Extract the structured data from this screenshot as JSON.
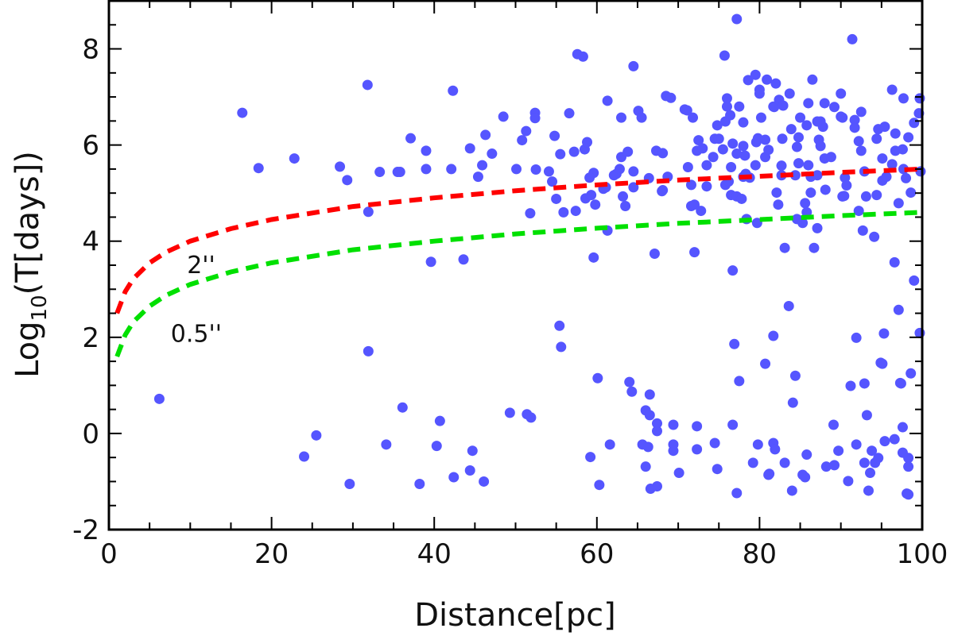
{
  "chart_data": {
    "type": "scatter",
    "title": "",
    "xlabel": "Distance[pc]",
    "ylabel_main": "Log",
    "ylabel_sub": "10",
    "ylabel_rest": "(T[days])",
    "xlim": [
      0,
      100
    ],
    "ylim": [
      -2,
      9
    ],
    "xticks": [
      0,
      20,
      40,
      60,
      80,
      100
    ],
    "yticks": [
      -2,
      0,
      2,
      4,
      6,
      8
    ],
    "x_minor_step": 5,
    "y_minor_step": 0.5,
    "grid": false,
    "point_color": "#5555ff",
    "points": [
      [
        6.2,
        0.72
      ],
      [
        16.4,
        6.67
      ],
      [
        18.4,
        5.52
      ],
      [
        22.8,
        5.72
      ],
      [
        24.0,
        -0.48
      ],
      [
        25.5,
        -0.04
      ],
      [
        28.4,
        5.55
      ],
      [
        29.3,
        5.27
      ],
      [
        29.6,
        -1.05
      ],
      [
        31.8,
        7.25
      ],
      [
        31.9,
        4.61
      ],
      [
        31.9,
        1.71
      ],
      [
        33.3,
        5.44
      ],
      [
        34.1,
        -0.23
      ],
      [
        35.5,
        5.44
      ],
      [
        35.8,
        5.44
      ],
      [
        36.1,
        0.54
      ],
      [
        37.1,
        6.14
      ],
      [
        38.2,
        -1.05
      ],
      [
        39.0,
        5.88
      ],
      [
        39.0,
        5.5
      ],
      [
        39.6,
        3.57
      ],
      [
        40.3,
        -0.26
      ],
      [
        40.7,
        0.26
      ],
      [
        42.1,
        5.5
      ],
      [
        42.3,
        7.13
      ],
      [
        42.4,
        -0.91
      ],
      [
        43.6,
        3.62
      ],
      [
        44.4,
        5.93
      ],
      [
        44.4,
        -0.77
      ],
      [
        44.7,
        -0.36
      ],
      [
        45.4,
        5.34
      ],
      [
        45.9,
        5.58
      ],
      [
        46.1,
        -1.0
      ],
      [
        46.3,
        6.21
      ],
      [
        47.1,
        5.82
      ],
      [
        48.5,
        6.59
      ],
      [
        49.3,
        0.43
      ],
      [
        50.1,
        5.5
      ],
      [
        50.8,
        6.1
      ],
      [
        51.3,
        6.29
      ],
      [
        51.8,
        4.58
      ],
      [
        52.4,
        6.67
      ],
      [
        52.4,
        6.56
      ],
      [
        52.5,
        5.49
      ],
      [
        54.1,
        5.45
      ],
      [
        54.8,
        6.19
      ],
      [
        51.4,
        0.4
      ],
      [
        51.9,
        0.33
      ],
      [
        55.4,
        2.24
      ],
      [
        55.6,
        1.8
      ],
      [
        54.5,
        5.24
      ],
      [
        55.0,
        4.88
      ],
      [
        55.5,
        5.81
      ],
      [
        55.9,
        4.6
      ],
      [
        56.6,
        6.66
      ],
      [
        57.2,
        5.86
      ],
      [
        57.4,
        4.63
      ],
      [
        57.6,
        7.89
      ],
      [
        58.3,
        7.84
      ],
      [
        58.6,
        4.89
      ],
      [
        58.5,
        5.91
      ],
      [
        58.8,
        6.06
      ],
      [
        59.2,
        -0.49
      ],
      [
        59.3,
        4.96
      ],
      [
        59.6,
        3.66
      ],
      [
        59.6,
        5.42
      ],
      [
        59.1,
        5.32
      ],
      [
        59.8,
        4.76
      ],
      [
        60.1,
        1.15
      ],
      [
        60.3,
        -1.07
      ],
      [
        60.8,
        5.09
      ],
      [
        61.1,
        5.12
      ],
      [
        61.3,
        6.92
      ],
      [
        61.3,
        4.22
      ],
      [
        61.6,
        -0.23
      ],
      [
        62.1,
        5.37
      ],
      [
        62.4,
        5.4
      ],
      [
        62.8,
        5.5
      ],
      [
        63.0,
        5.75
      ],
      [
        63.0,
        6.57
      ],
      [
        63.2,
        4.93
      ],
      [
        63.5,
        4.73
      ],
      [
        63.8,
        5.86
      ],
      [
        64.0,
        1.07
      ],
      [
        64.3,
        0.87
      ],
      [
        64.5,
        7.64
      ],
      [
        64.5,
        5.45
      ],
      [
        64.5,
        5.12
      ],
      [
        65.1,
        6.71
      ],
      [
        65.5,
        6.57
      ],
      [
        65.6,
        -0.23
      ],
      [
        66.0,
        -0.69
      ],
      [
        66.0,
        0.48
      ],
      [
        66.3,
        -0.28
      ],
      [
        66.4,
        5.31
      ],
      [
        66.5,
        0.81
      ],
      [
        66.5,
        0.38
      ],
      [
        66.6,
        -1.15
      ],
      [
        67.1,
        3.74
      ],
      [
        67.3,
        5.88
      ],
      [
        67.4,
        -1.1
      ],
      [
        67.4,
        0.21
      ],
      [
        67.4,
        0.05
      ],
      [
        68.0,
        5.04
      ],
      [
        68.1,
        5.83
      ],
      [
        68.1,
        5.06
      ],
      [
        68.5,
        7.02
      ],
      [
        68.7,
        5.34
      ],
      [
        69.1,
        6.98
      ],
      [
        69.4,
        0.18
      ],
      [
        69.4,
        -0.23
      ],
      [
        69.4,
        -0.36
      ],
      [
        70.1,
        -0.82
      ],
      [
        70.8,
        6.74
      ],
      [
        71.1,
        6.72
      ],
      [
        71.2,
        5.54
      ],
      [
        71.6,
        4.73
      ],
      [
        71.6,
        5.17
      ],
      [
        71.8,
        6.57
      ],
      [
        72.0,
        3.77
      ],
      [
        72.0,
        4.76
      ],
      [
        72.3,
        0.15
      ],
      [
        72.3,
        -0.33
      ],
      [
        72.3,
        5.88
      ],
      [
        72.5,
        6.1
      ],
      [
        72.8,
        4.63
      ],
      [
        73.0,
        5.93
      ],
      [
        73.5,
        5.14
      ],
      [
        73.5,
        5.58
      ],
      [
        74.3,
        5.75
      ],
      [
        74.5,
        -0.2
      ],
      [
        74.5,
        6.13
      ],
      [
        74.8,
        -0.74
      ],
      [
        74.8,
        6.41
      ],
      [
        75.0,
        6.13
      ],
      [
        75.5,
        5.91
      ],
      [
        75.7,
        7.86
      ],
      [
        75.8,
        6.49
      ],
      [
        75.8,
        5.17
      ],
      [
        76.0,
        6.97
      ],
      [
        76.0,
        6.8
      ],
      [
        76.2,
        5.24
      ],
      [
        76.5,
        5.54
      ],
      [
        76.5,
        4.96
      ],
      [
        76.4,
        6.62
      ],
      [
        76.7,
        3.39
      ],
      [
        76.7,
        0.18
      ],
      [
        76.7,
        6.03
      ],
      [
        76.9,
        1.86
      ],
      [
        77.2,
        8.62
      ],
      [
        77.2,
        -1.24
      ],
      [
        77.2,
        5.82
      ],
      [
        77.2,
        4.93
      ],
      [
        77.5,
        1.09
      ],
      [
        77.5,
        6.8
      ],
      [
        77.8,
        4.88
      ],
      [
        78.0,
        5.98
      ],
      [
        78.0,
        6.47
      ],
      [
        78.0,
        5.34
      ],
      [
        78.2,
        5.78
      ],
      [
        78.3,
        5.4
      ],
      [
        78.4,
        4.46
      ],
      [
        78.6,
        7.35
      ],
      [
        78.8,
        5.32
      ],
      [
        79.2,
        -0.61
      ],
      [
        79.5,
        7.46
      ],
      [
        79.5,
        5.58
      ],
      [
        79.6,
        6.06
      ],
      [
        79.7,
        4.38
      ],
      [
        79.8,
        -0.23
      ],
      [
        79.8,
        6.14
      ],
      [
        80.0,
        7.15
      ],
      [
        80.0,
        7.07
      ],
      [
        80.2,
        6.57
      ],
      [
        80.7,
        1.45
      ],
      [
        80.7,
        6.11
      ],
      [
        80.7,
        5.75
      ],
      [
        80.9,
        7.36
      ],
      [
        81.1,
        -0.86
      ],
      [
        81.1,
        5.9
      ],
      [
        81.2,
        -0.84
      ],
      [
        81.7,
        2.03
      ],
      [
        81.7,
        6.8
      ],
      [
        81.7,
        -0.2
      ],
      [
        81.9,
        -0.33
      ],
      [
        81.8,
        6.79
      ],
      [
        82.0,
        7.28
      ],
      [
        82.1,
        5.01
      ],
      [
        82.3,
        4.76
      ],
      [
        82.4,
        6.94
      ],
      [
        82.7,
        5.57
      ],
      [
        82.7,
        5.37
      ],
      [
        82.8,
        6.13
      ],
      [
        82.9,
        6.82
      ],
      [
        83.1,
        -0.61
      ],
      [
        83.1,
        3.86
      ],
      [
        83.6,
        2.65
      ],
      [
        83.7,
        7.07
      ],
      [
        83.9,
        6.33
      ],
      [
        84.0,
        -1.19
      ],
      [
        84.1,
        0.64
      ],
      [
        84.4,
        1.2
      ],
      [
        84.4,
        5.37
      ],
      [
        84.6,
        5.96
      ],
      [
        84.6,
        4.46
      ],
      [
        84.8,
        6.16
      ],
      [
        84.8,
        5.62
      ],
      [
        85.0,
        6.57
      ],
      [
        85.3,
        4.38
      ],
      [
        85.3,
        -0.86
      ],
      [
        85.6,
        -0.91
      ],
      [
        85.6,
        4.79
      ],
      [
        85.8,
        -0.44
      ],
      [
        85.8,
        6.41
      ],
      [
        85.8,
        4.6
      ],
      [
        86.0,
        6.87
      ],
      [
        86.0,
        5.58
      ],
      [
        86.3,
        5.01
      ],
      [
        86.3,
        5.34
      ],
      [
        86.5,
        7.36
      ],
      [
        86.7,
        3.86
      ],
      [
        87.1,
        6.49
      ],
      [
        87.1,
        5.37
      ],
      [
        87.1,
        4.27
      ],
      [
        87.3,
        6.11
      ],
      [
        87.5,
        5.98
      ],
      [
        87.5,
        6.49
      ],
      [
        87.8,
        6.38
      ],
      [
        88.0,
        6.87
      ],
      [
        88.0,
        5.72
      ],
      [
        88.1,
        5.07
      ],
      [
        88.2,
        -0.69
      ],
      [
        88.8,
        5.75
      ],
      [
        89.1,
        0.18
      ],
      [
        89.2,
        6.79
      ],
      [
        89.2,
        -0.66
      ],
      [
        89.7,
        -0.36
      ],
      [
        90.0,
        6.59
      ],
      [
        90.0,
        7.07
      ],
      [
        90.2,
        6.57
      ],
      [
        90.2,
        4.93
      ],
      [
        90.4,
        4.94
      ],
      [
        90.5,
        5.32
      ],
      [
        90.7,
        5.16
      ],
      [
        90.9,
        -0.99
      ],
      [
        91.2,
        0.99
      ],
      [
        91.4,
        8.2
      ],
      [
        91.7,
        6.36
      ],
      [
        91.7,
        6.52
      ],
      [
        91.9,
        1.99
      ],
      [
        91.9,
        -0.23
      ],
      [
        92.2,
        6.08
      ],
      [
        92.2,
        4.63
      ],
      [
        92.5,
        6.69
      ],
      [
        92.5,
        5.88
      ],
      [
        92.7,
        4.22
      ],
      [
        92.9,
        5.45
      ],
      [
        92.9,
        1.04
      ],
      [
        92.9,
        -0.61
      ],
      [
        93.1,
        4.93
      ],
      [
        93.2,
        0.38
      ],
      [
        93.4,
        -1.19
      ],
      [
        93.6,
        -0.82
      ],
      [
        93.8,
        -0.36
      ],
      [
        94.1,
        4.09
      ],
      [
        94.2,
        -0.61
      ],
      [
        94.4,
        6.13
      ],
      [
        94.4,
        4.96
      ],
      [
        94.6,
        6.33
      ],
      [
        94.6,
        -0.51
      ],
      [
        94.9,
        1.47
      ],
      [
        95.1,
        5.72
      ],
      [
        95.1,
        5.26
      ],
      [
        95.1,
        1.45
      ],
      [
        95.3,
        2.08
      ],
      [
        95.4,
        6.38
      ],
      [
        95.4,
        -0.16
      ],
      [
        95.6,
        5.34
      ],
      [
        96.3,
        7.15
      ],
      [
        96.3,
        5.6
      ],
      [
        96.6,
        3.56
      ],
      [
        96.6,
        -0.12
      ],
      [
        96.7,
        6.24
      ],
      [
        96.7,
        5.88
      ],
      [
        97.1,
        4.79
      ],
      [
        97.1,
        2.57
      ],
      [
        97.3,
        1.05
      ],
      [
        97.4,
        1.04
      ],
      [
        97.6,
        0.13
      ],
      [
        97.6,
        5.91
      ],
      [
        97.6,
        -0.4
      ],
      [
        97.7,
        6.97
      ],
      [
        97.7,
        5.5
      ],
      [
        98.0,
        5.31
      ],
      [
        98.1,
        -1.25
      ],
      [
        98.3,
        6.16
      ],
      [
        98.3,
        -0.51
      ],
      [
        98.3,
        -0.69
      ],
      [
        98.3,
        -1.27
      ],
      [
        98.6,
        5.01
      ],
      [
        98.6,
        1.25
      ],
      [
        99.0,
        6.46
      ],
      [
        99.0,
        3.18
      ],
      [
        99.6,
        6.66
      ],
      [
        99.7,
        2.09
      ],
      [
        99.7,
        6.97
      ],
      [
        99.8,
        5.45
      ]
    ],
    "curves": [
      {
        "label": "2''",
        "color": "#ff0000",
        "x": [
          1,
          2,
          3,
          5,
          7,
          10,
          15,
          20,
          30,
          40,
          50,
          60,
          70,
          80,
          90,
          100
        ],
        "y": [
          2.5,
          2.95,
          3.22,
          3.55,
          3.77,
          4.0,
          4.26,
          4.45,
          4.72,
          4.9,
          5.05,
          5.17,
          5.27,
          5.35,
          5.43,
          5.5
        ],
        "label_at": [
          9.6,
          3.5
        ]
      },
      {
        "label": "0.5''",
        "color": "#00e000",
        "x": [
          1,
          2,
          3,
          5,
          7,
          10,
          15,
          20,
          30,
          40,
          50,
          60,
          70,
          80,
          90,
          100
        ],
        "y": [
          1.6,
          2.05,
          2.32,
          2.65,
          2.87,
          3.1,
          3.36,
          3.55,
          3.82,
          4.0,
          4.15,
          4.27,
          4.37,
          4.45,
          4.53,
          4.6
        ],
        "label_at": [
          7.6,
          2.07
        ]
      }
    ]
  }
}
